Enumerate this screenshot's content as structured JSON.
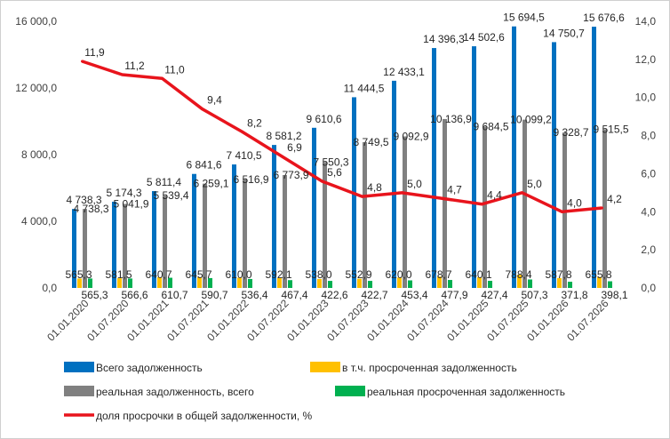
{
  "chart_data": {
    "type": "bar",
    "categories": [
      "01.01.2020",
      "01.07.2020",
      "01.01.2021",
      "01.07.2021",
      "01.01.2022",
      "01.07.2022",
      "01.01.2023",
      "01.07.2023",
      "01.01.2024",
      "01.07.2024",
      "01.01.2025",
      "01.07.2025",
      "01.01.2026",
      "01.07.2026"
    ],
    "series": [
      {
        "name": "Всего задолженность",
        "type": "bar",
        "axis": "left",
        "color": "#0070c0",
        "values": [
          4738.3,
          5174.3,
          5811.4,
          6841.6,
          7410.5,
          8581.2,
          9610.6,
          11444.5,
          12433.1,
          14396.3,
          14502.6,
          15694.5,
          14750.7,
          15676.6
        ],
        "labels": [
          "4 738,3",
          "5 174,3",
          "5 811,4",
          "6 841,6",
          "7 410,5",
          "8 581,2",
          "9 610,6",
          "11 444,5",
          "12 433,1",
          "14 396,3",
          "14 502,6",
          "15 694,5",
          "14 750,7",
          "15 676,6"
        ]
      },
      {
        "name": "в т.ч. просроченная задолженность",
        "type": "bar",
        "axis": "left",
        "color": "#ffc000",
        "values": [
          565.3,
          581.5,
          640.7,
          645.7,
          610.0,
          592.1,
          538.0,
          552.9,
          620.0,
          678.7,
          640.1,
          788.4,
          587.8,
          655.8
        ],
        "labels": [
          "565,3",
          "581,5",
          "640,7",
          "645,7",
          "610,0",
          "592,1",
          "538,0",
          "552,9",
          "620,0",
          "678,7",
          "640,1",
          "788,4",
          "587,8",
          "655,8"
        ]
      },
      {
        "name": "реальная задолженность, всего",
        "type": "bar",
        "axis": "left",
        "color": "#808080",
        "values": [
          4738.3,
          5041.9,
          5539.4,
          6259.1,
          6516.9,
          6773.9,
          7550.3,
          8749.5,
          9092.9,
          10136.9,
          9684.5,
          10099.2,
          9328.7,
          9515.5
        ],
        "labels": [
          "4 738,3",
          "5 041,9",
          "5 539,4",
          "6 259,1",
          "6 516,9",
          "6 773,9",
          "7 550,3",
          "8 749,5",
          "9 092,9",
          "10 136,9",
          "9 684,5",
          "10 099,2",
          "9 328,7",
          "9 515,5"
        ]
      },
      {
        "name": "реальная просроченная задолженность",
        "type": "bar",
        "axis": "left",
        "color": "#00b050",
        "values": [
          565.3,
          566.6,
          610.7,
          590.7,
          536.4,
          467.4,
          422.6,
          422.7,
          453.4,
          477.9,
          427.4,
          507.3,
          371.8,
          398.1
        ],
        "labels": [
          "565,3",
          "566,6",
          "610,7",
          "590,7",
          "536,4",
          "467,4",
          "422,6",
          "422,7",
          "453,4",
          "477,9",
          "427,4",
          "507,3",
          "371,8",
          "398,1"
        ]
      },
      {
        "name": "доля просрочки в общей задолженности, %",
        "type": "line",
        "axis": "right",
        "color": "#e8141c",
        "values": [
          11.9,
          11.2,
          11.0,
          9.4,
          8.2,
          6.9,
          5.6,
          4.8,
          5.0,
          4.7,
          4.4,
          5.0,
          4.0,
          4.2
        ],
        "labels": [
          "11,9",
          "11,2",
          "11,0",
          "9,4",
          "8,2",
          "6,9",
          "5,6",
          "4,8",
          "5,0",
          "4,7",
          "4,4",
          "5,0",
          "4,0",
          "4,2"
        ]
      }
    ],
    "y_left": {
      "min": 0,
      "max": 16000,
      "ticks": [
        0,
        4000,
        8000,
        12000,
        16000
      ],
      "tick_labels": [
        "0,0",
        "4 000,0",
        "8 000,0",
        "12 000,0",
        "16 000,0"
      ]
    },
    "y_right": {
      "min": 0,
      "max": 14,
      "ticks": [
        0,
        2,
        4,
        6,
        8,
        10,
        12,
        14
      ],
      "tick_labels": [
        "0,0",
        "2,0",
        "4,0",
        "6,0",
        "8,0",
        "10,0",
        "12,0",
        "14,0"
      ]
    },
    "grid": false,
    "legend": "bottom",
    "title": "",
    "xlabel": "",
    "ylabel": ""
  }
}
